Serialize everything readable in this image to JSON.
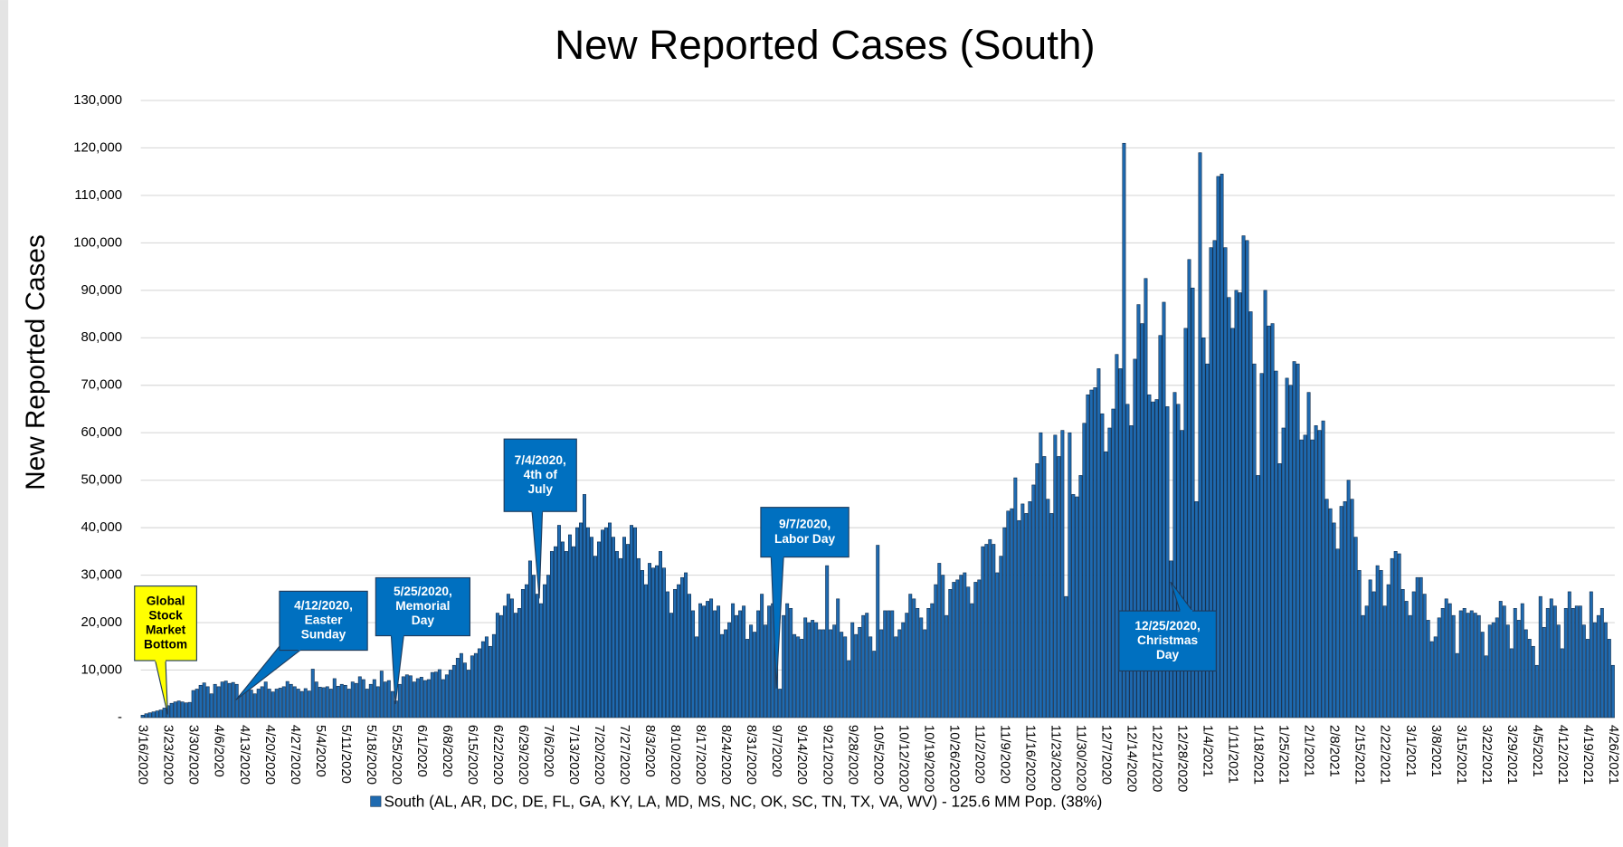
{
  "chart_data": {
    "type": "bar",
    "title": "New Reported Cases (South)",
    "y_label": "New Reported Cases",
    "series": [
      {
        "name": "South (AL, AR, DC, DE, FL, GA, KY, LA, MD, MS, NC, OK, SC, TN, TX, VA, WV) - 125.6 MM Pop. (38%)",
        "color": "#1f6ab0",
        "values": [
          500,
          800,
          1000,
          1200,
          1400,
          1600,
          2000,
          2500,
          3000,
          3300,
          3500,
          3300,
          3100,
          3200,
          5700,
          6000,
          6800,
          7300,
          6500,
          5000,
          7000,
          6500,
          7500,
          7700,
          7200,
          7400,
          7000,
          4500,
          5400,
          6300,
          5800,
          5000,
          6000,
          6500,
          7500,
          6000,
          5400,
          6000,
          6200,
          6500,
          7600,
          7000,
          6500,
          6000,
          5500,
          6100,
          5600,
          10200,
          7500,
          6400,
          6300,
          6500,
          6000,
          8200,
          6600,
          7000,
          6800,
          6000,
          7500,
          7200,
          8600,
          8000,
          6000,
          7000,
          8000,
          6500,
          9800,
          7500,
          7800,
          5500,
          3500,
          7000,
          8600,
          9000,
          8800,
          7500,
          8200,
          8500,
          7800,
          8000,
          9500,
          9600,
          10100,
          8000,
          9000,
          10000,
          11000,
          12500,
          13500,
          11500,
          10000,
          13000,
          13500,
          14500,
          16000,
          17000,
          15000,
          17500,
          22000,
          21500,
          23500,
          26000,
          25000,
          22000,
          23000,
          27000,
          28000,
          33000,
          30000,
          26000,
          24000,
          28000,
          30000,
          35000,
          36000,
          40500,
          37000,
          35000,
          38500,
          36000,
          40000,
          41000,
          47000,
          40000,
          38000,
          34000,
          37000,
          39500,
          40000,
          41000,
          38000,
          35000,
          33500,
          38000,
          36500,
          40500,
          40000,
          33500,
          31000,
          28000,
          32500,
          31500,
          32000,
          35000,
          31500,
          26500,
          22000,
          27000,
          28000,
          29500,
          30500,
          26000,
          22500,
          17000,
          24000,
          23500,
          24500,
          25000,
          22500,
          23500,
          17500,
          18500,
          20000,
          24000,
          21500,
          22500,
          23500,
          16500,
          19500,
          18000,
          22500,
          26000,
          19500,
          23500,
          24000,
          15000,
          6000,
          21500,
          24000,
          23000,
          17500,
          17000,
          16500,
          21000,
          20000,
          20500,
          20000,
          18500,
          18500,
          32000,
          18500,
          19500,
          25000,
          18000,
          17000,
          12000,
          20000,
          17500,
          19000,
          21500,
          22000,
          17000,
          14000,
          36300,
          18500,
          22500,
          22500,
          22500,
          17000,
          18500,
          20000,
          22000,
          26000,
          25000,
          23000,
          21000,
          18500,
          23000,
          24000,
          28000,
          32500,
          30000,
          21500,
          27000,
          28500,
          29000,
          30000,
          30500,
          27500,
          24000,
          28500,
          29000,
          36000,
          36500,
          37500,
          36500,
          30500,
          34000,
          40000,
          43500,
          44000,
          50500,
          41500,
          45000,
          43000,
          45500,
          49000,
          53500,
          60000,
          55000,
          46000,
          43000,
          59500,
          55000,
          60500,
          25500,
          60000,
          47000,
          46500,
          51000,
          62000,
          68000,
          69000,
          69500,
          73500,
          64000,
          56000,
          61000,
          65000,
          76500,
          73500,
          121000,
          66000,
          61500,
          75500,
          87000,
          83000,
          92500,
          68000,
          66500,
          67000,
          80500,
          87500,
          65500,
          33000,
          68500,
          66000,
          60500,
          82000,
          96500,
          90500,
          45500,
          119000,
          80000,
          74500,
          99000,
          100500,
          114000,
          114500,
          99000,
          88500,
          82000,
          90000,
          89500,
          101500,
          100500,
          85500,
          74500,
          51000,
          72500,
          90000,
          82500,
          83000,
          73000,
          53500,
          61000,
          71500,
          70000,
          75000,
          74500,
          58500,
          59500,
          68500,
          58500,
          61500,
          60500,
          62500,
          46000,
          44000,
          41000,
          35500,
          44500,
          45500,
          50000,
          46000,
          38000,
          31000,
          21500,
          23500,
          29000,
          26500,
          32000,
          31000,
          23500,
          28000,
          33500,
          35000,
          34500,
          27000,
          24500,
          21500,
          26500,
          29500,
          29500,
          26000,
          20500,
          16000,
          17000,
          21000,
          23000,
          25000,
          24000,
          21500,
          13500,
          22500,
          23000,
          22000,
          22500,
          22000,
          21500,
          18000,
          13000,
          19500,
          20000,
          21000,
          24500,
          23500,
          19500,
          14500,
          23000,
          20500,
          24000,
          18500,
          16500,
          15000,
          11000,
          25500,
          19000,
          23000,
          25000,
          23500,
          19500,
          14500,
          23000,
          26500,
          23000,
          23500,
          23500,
          19500,
          16500,
          26500,
          20000,
          21500,
          23000,
          20000,
          16500,
          11000
        ]
      }
    ],
    "categories": [
      "3/16/2020",
      null,
      null,
      null,
      null,
      null,
      null,
      "3/23/2020",
      null,
      null,
      null,
      null,
      null,
      null,
      "3/30/2020",
      null,
      null,
      null,
      null,
      null,
      null,
      "4/6/2020",
      null,
      null,
      null,
      null,
      null,
      null,
      "4/13/2020",
      null,
      null,
      null,
      null,
      null,
      null,
      "4/20/2020",
      null,
      null,
      null,
      null,
      null,
      null,
      "4/27/2020",
      null,
      null,
      null,
      null,
      null,
      null,
      "5/4/2020",
      null,
      null,
      null,
      null,
      null,
      null,
      "5/11/2020",
      null,
      null,
      null,
      null,
      null,
      null,
      "5/18/2020",
      null,
      null,
      null,
      null,
      null,
      null,
      "5/25/2020",
      null,
      null,
      null,
      null,
      null,
      null,
      "6/1/2020",
      null,
      null,
      null,
      null,
      null,
      null,
      "6/8/2020",
      null,
      null,
      null,
      null,
      null,
      null,
      "6/15/2020",
      null,
      null,
      null,
      null,
      null,
      null,
      "6/22/2020",
      null,
      null,
      null,
      null,
      null,
      null,
      "6/29/2020",
      null,
      null,
      null,
      null,
      null,
      null,
      "7/6/2020",
      null,
      null,
      null,
      null,
      null,
      null,
      "7/13/2020",
      null,
      null,
      null,
      null,
      null,
      null,
      "7/20/2020",
      null,
      null,
      null,
      null,
      null,
      null,
      "7/27/2020",
      null,
      null,
      null,
      null,
      null,
      null,
      "8/3/2020",
      null,
      null,
      null,
      null,
      null,
      null,
      "8/10/2020",
      null,
      null,
      null,
      null,
      null,
      null,
      "8/17/2020",
      null,
      null,
      null,
      null,
      null,
      null,
      "8/24/2020",
      null,
      null,
      null,
      null,
      null,
      null,
      "8/31/2020",
      null,
      null,
      null,
      null,
      null,
      null,
      "9/7/2020",
      null,
      null,
      null,
      null,
      null,
      null,
      "9/14/2020",
      null,
      null,
      null,
      null,
      null,
      null,
      "9/21/2020",
      null,
      null,
      null,
      null,
      null,
      null,
      "9/28/2020",
      null,
      null,
      null,
      null,
      null,
      null,
      "10/5/2020",
      null,
      null,
      null,
      null,
      null,
      null,
      "10/12/2020",
      null,
      null,
      null,
      null,
      null,
      null,
      "10/19/2020",
      null,
      null,
      null,
      null,
      null,
      null,
      "10/26/2020",
      null,
      null,
      null,
      null,
      null,
      null,
      "11/2/2020",
      null,
      null,
      null,
      null,
      null,
      null,
      "11/9/2020",
      null,
      null,
      null,
      null,
      null,
      null,
      "11/16/2020",
      null,
      null,
      null,
      null,
      null,
      null,
      "11/23/2020",
      null,
      null,
      null,
      null,
      null,
      null,
      "11/30/2020",
      null,
      null,
      null,
      null,
      null,
      null,
      "12/7/2020",
      null,
      null,
      null,
      null,
      null,
      null,
      "12/14/2020",
      null,
      null,
      null,
      null,
      null,
      null,
      "12/21/2020",
      null,
      null,
      null,
      null,
      null,
      null,
      "12/28/2020",
      null,
      null,
      null,
      null,
      null,
      null,
      "1/4/2021",
      null,
      null,
      null,
      null,
      null,
      null,
      "1/11/2021",
      null,
      null,
      null,
      null,
      null,
      null,
      "1/18/2021",
      null,
      null,
      null,
      null,
      null,
      null,
      "1/25/2021",
      null,
      null,
      null,
      null,
      null,
      null,
      "2/1/2021",
      null,
      null,
      null,
      null,
      null,
      null,
      "2/8/2021",
      null,
      null,
      null,
      null,
      null,
      null,
      "2/15/2021",
      null,
      null,
      null,
      null,
      null,
      null,
      "2/22/2021",
      null,
      null,
      null,
      null,
      null,
      null,
      "3/1/2021",
      null,
      null,
      null,
      null,
      null,
      null,
      "3/8/2021",
      null,
      null,
      null,
      null,
      null,
      null,
      "3/15/2021",
      null,
      null,
      null,
      null,
      null,
      null,
      "3/22/2021",
      null,
      null,
      null,
      null,
      null,
      null,
      "3/29/2021",
      null,
      null,
      null,
      null,
      null,
      null,
      "4/5/2021",
      null,
      null,
      null,
      null,
      null,
      null,
      "4/12/2021",
      null,
      null,
      null,
      null,
      null,
      null,
      "4/19/2021",
      null,
      null,
      null,
      null,
      null,
      null,
      "4/26/2021"
    ],
    "ylim": [
      0,
      130000
    ],
    "yticks": [
      {
        "value": 0,
        "label": "-"
      },
      {
        "value": 10000,
        "label": "10,000"
      },
      {
        "value": 20000,
        "label": "20,000"
      },
      {
        "value": 30000,
        "label": "30,000"
      },
      {
        "value": 40000,
        "label": "40,000"
      },
      {
        "value": 50000,
        "label": "50,000"
      },
      {
        "value": 60000,
        "label": "60,000"
      },
      {
        "value": 70000,
        "label": "70,000"
      },
      {
        "value": 80000,
        "label": "80,000"
      },
      {
        "value": 90000,
        "label": "90,000"
      },
      {
        "value": 100000,
        "label": "100,000"
      },
      {
        "value": 110000,
        "label": "110,000"
      },
      {
        "value": 120000,
        "label": "120,000"
      },
      {
        "value": 130000,
        "label": "130,000"
      }
    ],
    "grid": true,
    "legend": "bottom",
    "annotations": [
      {
        "text": [
          "Global",
          "Stock",
          "Market",
          "Bottom"
        ],
        "color": "#ffff00"
      },
      {
        "text": [
          "4/12/2020,",
          "Easter",
          "Sunday"
        ],
        "color": "#0070c0"
      },
      {
        "text": [
          "5/25/2020,",
          "Memorial",
          "Day"
        ],
        "color": "#0070c0"
      },
      {
        "text": [
          "7/4/2020,",
          "4th of",
          "July"
        ],
        "color": "#0070c0"
      },
      {
        "text": [
          "9/7/2020,",
          "Labor Day"
        ],
        "color": "#0070c0"
      },
      {
        "text": [
          "12/25/2020,",
          "Christmas",
          "Day"
        ],
        "color": "#0070c0"
      }
    ]
  }
}
